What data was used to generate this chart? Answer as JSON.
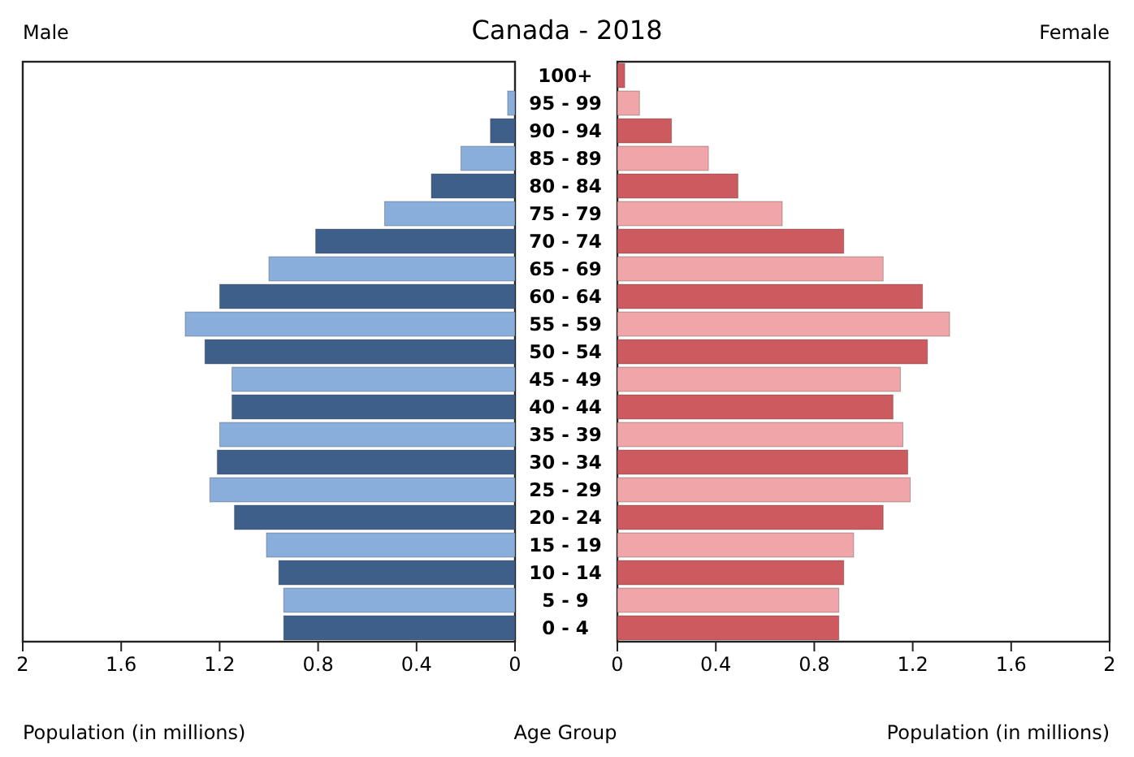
{
  "chart_data": [
    {
      "type": "bar",
      "orientation": "horizontal",
      "title": "Canada - 2018",
      "xlabel": "Population (in millions)",
      "ylabel": "Age Group",
      "categories": [
        "100+",
        "95 - 99",
        "90 - 94",
        "85 - 89",
        "80 - 84",
        "75 - 79",
        "70 - 74",
        "65 - 69",
        "60 - 64",
        "55 - 59",
        "50 - 54",
        "45 - 49",
        "40 - 44",
        "35 - 39",
        "30 - 34",
        "25 - 29",
        "20 - 24",
        "15 - 19",
        "10 - 14",
        "5 - 9",
        "0 - 4"
      ],
      "xlim": [
        2,
        0
      ],
      "xticks": [
        2,
        1.6,
        1.2,
        0.8,
        0.4,
        0
      ],
      "series": [
        {
          "name": "Male",
          "colors": [
            "#3d5f8a",
            "#8aaedb",
            "#3d5f8a",
            "#8aaedb",
            "#3d5f8a",
            "#8aaedb",
            "#3d5f8a",
            "#8aaedb",
            "#3d5f8a",
            "#8aaedb",
            "#3d5f8a",
            "#8aaedb",
            "#3d5f8a",
            "#8aaedb",
            "#3d5f8a",
            "#8aaedb",
            "#3d5f8a",
            "#8aaedb",
            "#3d5f8a",
            "#8aaedb",
            "#3d5f8a"
          ],
          "values": [
            0,
            0.03,
            0.1,
            0.22,
            0.34,
            0.53,
            0.81,
            1.0,
            1.2,
            1.34,
            1.26,
            1.15,
            1.15,
            1.2,
            1.21,
            1.24,
            1.14,
            1.01,
            0.96,
            0.94,
            0.94
          ]
        }
      ]
    },
    {
      "type": "bar",
      "orientation": "horizontal",
      "xlabel": "Population (in millions)",
      "tick_labels": "x",
      "categories": [
        null,
        null,
        null,
        null,
        null,
        null,
        null,
        null,
        null,
        null,
        null,
        null,
        null,
        null,
        null,
        null,
        null,
        null,
        null,
        null,
        null
      ],
      "xlim": [
        0,
        2
      ],
      "xticks": [
        0,
        0.4,
        0.8,
        1.2,
        1.6,
        2
      ],
      "series": [
        {
          "name": "Female",
          "colors": [
            "#cc5a5e",
            "#f0a5a8",
            "#cc5a5e",
            "#f0a5a8",
            "#cc5a5e",
            "#f0a5a8",
            "#cc5a5e",
            "#f0a5a8",
            "#cc5a5e",
            "#f0a5a8",
            "#cc5a5e",
            "#f0a5a8",
            "#cc5a5e",
            "#f0a5a8",
            "#cc5a5e",
            "#f0a5a8",
            "#cc5a5e",
            "#f0a5a8",
            "#cc5a5e",
            "#f0a5a8",
            "#cc5a5e"
          ],
          "values": [
            0.03,
            0.09,
            0.22,
            0.37,
            0.49,
            0.67,
            0.92,
            1.08,
            1.24,
            1.35,
            1.26,
            1.15,
            1.12,
            1.16,
            1.18,
            1.19,
            1.08,
            0.96,
            0.92,
            0.9,
            0.9
          ]
        }
      ]
    }
  ]
}
